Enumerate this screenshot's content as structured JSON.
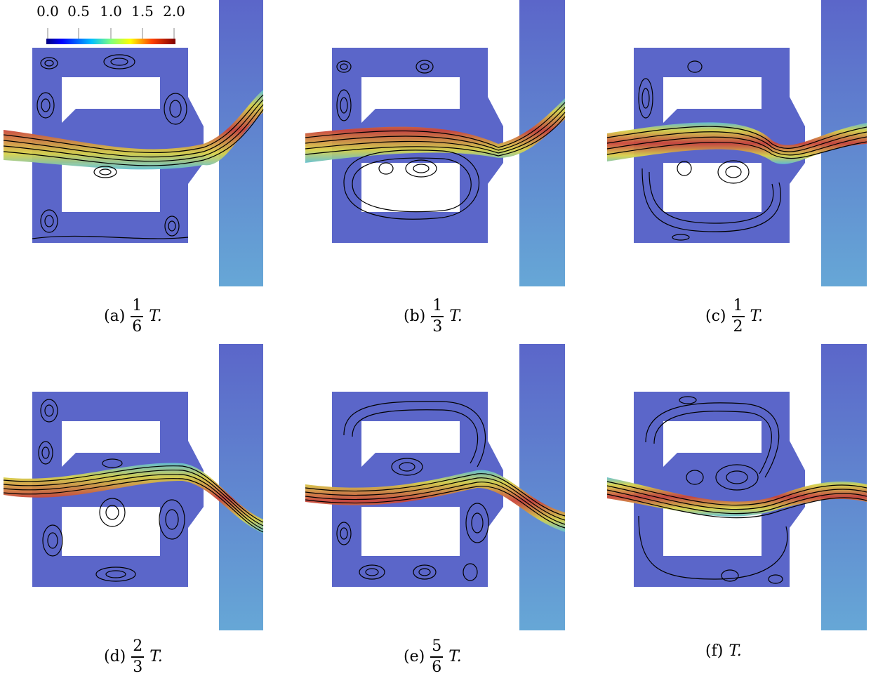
{
  "colorbar": {
    "ticks": [
      "0.0",
      "0.5",
      "1.0",
      "1.5",
      "2.0"
    ],
    "colormap": [
      "#00007f",
      "#0000ff",
      "#00bfff",
      "#7fff7f",
      "#ffff00",
      "#ff7f00",
      "#ff0000",
      "#7f0000"
    ]
  },
  "panels": [
    {
      "label": "(a)",
      "num": "1",
      "den": "6",
      "sym": "T."
    },
    {
      "label": "(b)",
      "num": "1",
      "den": "3",
      "sym": "T."
    },
    {
      "label": "(c)",
      "num": "1",
      "den": "2",
      "sym": "T."
    },
    {
      "label": "(d)",
      "num": "2",
      "den": "3",
      "sym": "T."
    },
    {
      "label": "(e)",
      "num": "5",
      "den": "6",
      "sym": "T."
    },
    {
      "label": "(f)",
      "num": "",
      "den": "",
      "sym": "T."
    }
  ],
  "colors": {
    "background_flow": "#5b66c9",
    "mid_flow": "#63b7d3",
    "jet_core": "#c9443a",
    "jet_edge": "#d8d24a",
    "streamline": "#000000"
  }
}
